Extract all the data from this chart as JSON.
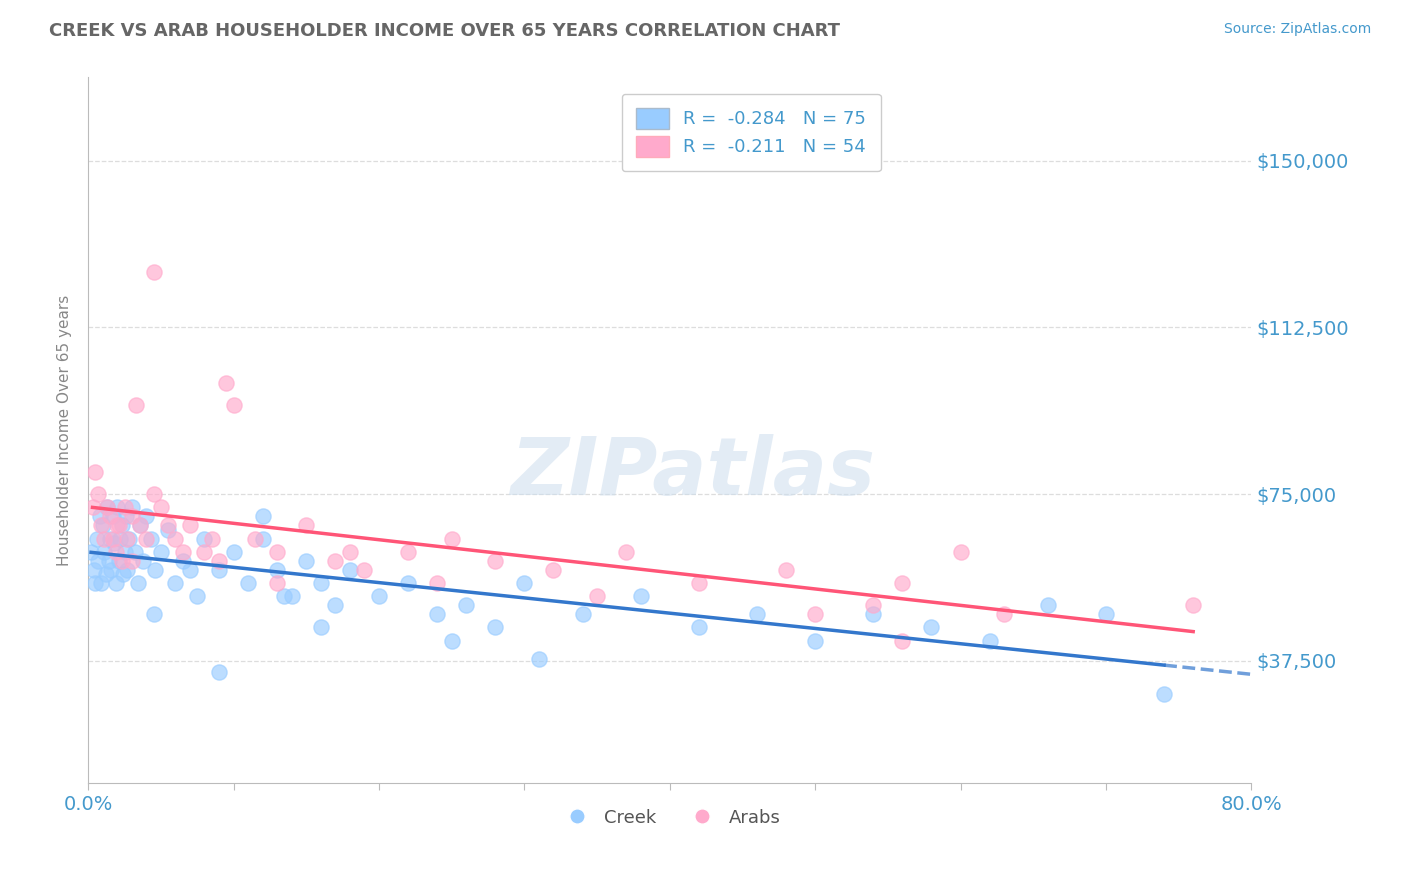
{
  "title": "CREEK VS ARAB HOUSEHOLDER INCOME OVER 65 YEARS CORRELATION CHART",
  "source": "Source: ZipAtlas.com",
  "ylabel": "Householder Income Over 65 years",
  "xlim": [
    0.0,
    0.8
  ],
  "ylim": [
    10000,
    168750
  ],
  "yticks": [
    37500,
    75000,
    112500,
    150000
  ],
  "ytick_labels": [
    "$37,500",
    "$75,000",
    "$112,500",
    "$150,000"
  ],
  "xticks": [
    0.0,
    0.1,
    0.2,
    0.3,
    0.4,
    0.5,
    0.6,
    0.7,
    0.8
  ],
  "creek_color": "#99CCFF",
  "arab_color": "#FFAACC",
  "creek_line_color": "#3377CC",
  "arab_line_color": "#FF5577",
  "legend_creek_label": "R =  -0.284   N = 75",
  "legend_arab_label": "R =  -0.211   N = 54",
  "watermark": "ZIPatlas",
  "grid_color": "#DDDDDD",
  "axis_label_color": "#4499CC",
  "background_color": "#FFFFFF",
  "creek_x": [
    0.002,
    0.004,
    0.005,
    0.006,
    0.007,
    0.008,
    0.009,
    0.01,
    0.011,
    0.012,
    0.013,
    0.014,
    0.015,
    0.016,
    0.017,
    0.018,
    0.019,
    0.02,
    0.021,
    0.022,
    0.023,
    0.024,
    0.025,
    0.026,
    0.027,
    0.028,
    0.03,
    0.032,
    0.034,
    0.036,
    0.038,
    0.04,
    0.043,
    0.046,
    0.05,
    0.055,
    0.06,
    0.065,
    0.07,
    0.075,
    0.08,
    0.09,
    0.1,
    0.11,
    0.12,
    0.13,
    0.14,
    0.15,
    0.16,
    0.17,
    0.18,
    0.2,
    0.22,
    0.24,
    0.26,
    0.28,
    0.3,
    0.34,
    0.38,
    0.42,
    0.46,
    0.5,
    0.54,
    0.58,
    0.62,
    0.66,
    0.7,
    0.74,
    0.12,
    0.16,
    0.045,
    0.09,
    0.135,
    0.25,
    0.31
  ],
  "creek_y": [
    62000,
    58000,
    55000,
    65000,
    60000,
    70000,
    55000,
    68000,
    62000,
    57000,
    72000,
    60000,
    65000,
    58000,
    70000,
    64000,
    55000,
    72000,
    60000,
    65000,
    68000,
    57000,
    62000,
    70000,
    58000,
    65000,
    72000,
    62000,
    55000,
    68000,
    60000,
    70000,
    65000,
    58000,
    62000,
    67000,
    55000,
    60000,
    58000,
    52000,
    65000,
    58000,
    62000,
    55000,
    65000,
    58000,
    52000,
    60000,
    55000,
    50000,
    58000,
    52000,
    55000,
    48000,
    50000,
    45000,
    55000,
    48000,
    52000,
    45000,
    48000,
    42000,
    48000,
    45000,
    42000,
    50000,
    48000,
    30000,
    70000,
    45000,
    48000,
    35000,
    52000,
    42000,
    38000
  ],
  "arab_x": [
    0.003,
    0.005,
    0.007,
    0.009,
    0.011,
    0.013,
    0.015,
    0.017,
    0.019,
    0.021,
    0.023,
    0.025,
    0.027,
    0.03,
    0.033,
    0.036,
    0.04,
    0.045,
    0.05,
    0.055,
    0.06,
    0.065,
    0.07,
    0.08,
    0.09,
    0.1,
    0.115,
    0.13,
    0.15,
    0.17,
    0.19,
    0.22,
    0.25,
    0.28,
    0.32,
    0.37,
    0.42,
    0.48,
    0.54,
    0.6,
    0.045,
    0.085,
    0.13,
    0.095,
    0.18,
    0.24,
    0.35,
    0.5,
    0.56,
    0.63,
    0.02,
    0.03,
    0.76,
    0.56
  ],
  "arab_y": [
    72000,
    80000,
    75000,
    68000,
    65000,
    72000,
    70000,
    65000,
    62000,
    68000,
    60000,
    72000,
    65000,
    70000,
    95000,
    68000,
    65000,
    125000,
    72000,
    68000,
    65000,
    62000,
    68000,
    62000,
    60000,
    95000,
    65000,
    62000,
    68000,
    60000,
    58000,
    62000,
    65000,
    60000,
    58000,
    62000,
    55000,
    58000,
    50000,
    62000,
    75000,
    65000,
    55000,
    100000,
    62000,
    55000,
    52000,
    48000,
    55000,
    48000,
    68000,
    60000,
    50000,
    42000
  ]
}
